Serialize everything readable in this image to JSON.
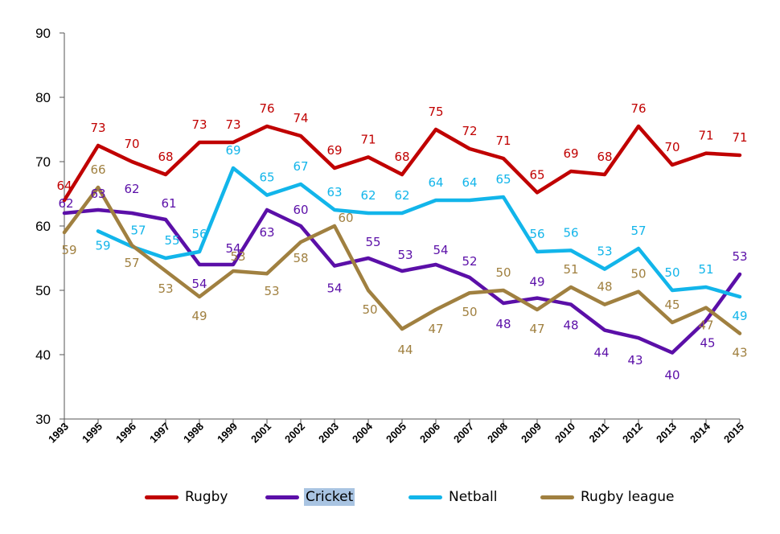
{
  "chart_data": {
    "type": "line",
    "categories": [
      "1993",
      "1995",
      "1996",
      "1997",
      "1998",
      "1999",
      "2001",
      "2002",
      "2003",
      "2004",
      "2005",
      "2006",
      "2007",
      "2008",
      "2009",
      "2010",
      "2011",
      "2012",
      "2013",
      "2014",
      "2015"
    ],
    "ylim": [
      30,
      90
    ],
    "yticks": [
      30,
      40,
      50,
      60,
      70,
      80,
      90
    ],
    "grid": false,
    "legend_position": "bottom",
    "series": [
      {
        "name": "Rugby",
        "color": "#c00000",
        "values": [
          64,
          72.5,
          70,
          68,
          73,
          73,
          75.5,
          74,
          69,
          70.7,
          68,
          75,
          72,
          70.5,
          65.2,
          68.5,
          68,
          75.5,
          69.5,
          71.3,
          71
        ],
        "labels": [
          "64",
          "73",
          "70",
          "68",
          "73",
          "73",
          "76",
          "74",
          "69",
          "71",
          "68",
          "75",
          "72",
          "71",
          "65",
          "69",
          "68",
          "76",
          "70",
          "71",
          "71"
        ]
      },
      {
        "name": "Cricket",
        "color": "#5b0fa8",
        "values": [
          62,
          62.5,
          62,
          61,
          54,
          54,
          62.5,
          60,
          53.8,
          55,
          53,
          54,
          52,
          48,
          48.8,
          47.8,
          43.8,
          42.6,
          40.3,
          45.3,
          52.5
        ],
        "labels": [
          "62",
          "63",
          "62",
          "61",
          "54",
          "54",
          "63",
          "60",
          "54",
          "55",
          "53",
          "54",
          "52",
          "48",
          "49",
          "48",
          "44",
          "43",
          "40",
          "45",
          "53"
        ]
      },
      {
        "name": "Netball",
        "color": "#12b5ea",
        "values": [
          null,
          59.2,
          56.8,
          55,
          56,
          69,
          64.8,
          66.5,
          62.5,
          62,
          62,
          64,
          64,
          64.5,
          56,
          56.2,
          53.3,
          56.5,
          50,
          50.5,
          49
        ],
        "labels": [
          null,
          "59",
          "57",
          "55",
          "56",
          "69",
          "65",
          "67",
          "63",
          "62",
          "62",
          "64",
          "64",
          "65",
          "56",
          "56",
          "53",
          "57",
          "50",
          "51",
          "49"
        ]
      },
      {
        "name": "Rugby league",
        "color": "#a08040",
        "values": [
          59,
          66,
          57,
          53,
          49,
          53,
          52.6,
          57.5,
          60,
          50,
          44,
          47,
          49.6,
          50,
          47,
          50.5,
          47.8,
          49.8,
          45,
          47.3,
          43.3
        ],
        "labels": [
          "59",
          "66",
          "57",
          "53",
          "49",
          "53",
          "53",
          "58",
          "60",
          "50",
          "44",
          "47",
          "50",
          "50",
          "47",
          "51",
          "48",
          "50",
          "45",
          "47",
          "43"
        ]
      }
    ]
  },
  "legend": {
    "items": [
      {
        "label": "Rugby"
      },
      {
        "label": "Cricket"
      },
      {
        "label": "Netball"
      },
      {
        "label": "Rugby league"
      }
    ]
  }
}
